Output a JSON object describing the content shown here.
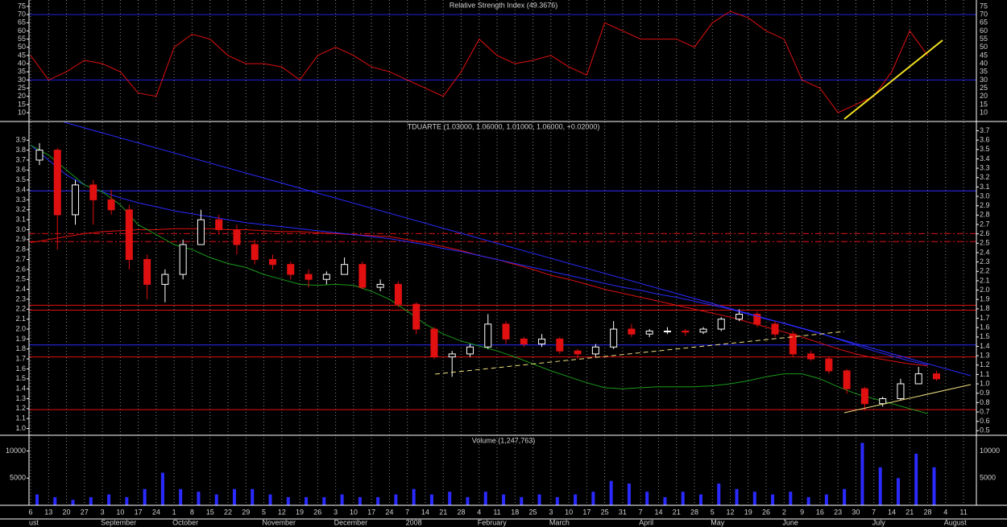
{
  "x_axis": {
    "months": [
      {
        "name": "ust",
        "days": [
          "6",
          "13",
          "20",
          "27"
        ]
      },
      {
        "name": "September",
        "days": [
          "3",
          "10",
          "17",
          "24"
        ]
      },
      {
        "name": "October",
        "days": [
          "1",
          "8",
          "15",
          "22",
          "29"
        ]
      },
      {
        "name": "November",
        "days": [
          "5",
          "12",
          "19",
          "26"
        ]
      },
      {
        "name": "December",
        "days": [
          "3",
          "10",
          "17",
          "24"
        ]
      },
      {
        "name": "2008",
        "days": [
          "7",
          "14",
          "21",
          "28"
        ]
      },
      {
        "name": "February",
        "days": [
          "4",
          "11",
          "18",
          "25"
        ]
      },
      {
        "name": "March",
        "days": [
          "3",
          "10",
          "17",
          "25",
          "31"
        ]
      },
      {
        "name": "April",
        "days": [
          "7",
          "14",
          "21",
          "28"
        ]
      },
      {
        "name": "May",
        "days": [
          "5",
          "12",
          "19",
          "26"
        ]
      },
      {
        "name": "June",
        "days": [
          "2",
          "9",
          "16",
          "23",
          "30"
        ]
      },
      {
        "name": "July",
        "days": [
          "7",
          "14",
          "21",
          "28"
        ]
      },
      {
        "name": "August",
        "days": [
          "4",
          "11"
        ]
      }
    ]
  },
  "chart_data": [
    {
      "type": "line",
      "title": "Relative Strength Index (49.3676)",
      "color": "#e01010",
      "values": [
        45,
        30,
        35,
        42,
        40,
        35,
        22,
        20,
        50,
        58,
        55,
        45,
        40,
        40,
        38,
        30,
        45,
        50,
        45,
        38,
        35,
        30,
        25,
        20,
        35,
        55,
        45,
        40,
        42,
        45,
        38,
        33,
        65,
        60,
        55,
        55,
        55,
        50,
        65,
        72,
        68,
        60,
        55,
        30,
        25,
        10,
        15,
        20,
        35,
        60,
        45,
        null,
        null
      ],
      "ylim": [
        5.1,
        78.9
      ],
      "yticks": [
        10,
        15,
        20,
        25,
        30,
        35,
        40,
        45,
        50,
        55,
        60,
        65,
        70,
        75
      ],
      "levels": [
        {
          "value": 70,
          "color": "#2020e0"
        },
        {
          "value": 30,
          "color": "#2020e0"
        }
      ]
    },
    {
      "type": "candlestick",
      "title": "TDUARTE (1.03000, 1.06000, 1.01000, 1.06000, +0.02000)",
      "up_color": "#ffffff",
      "down_color": "#e01010",
      "open": [
        3.7,
        3.8,
        3.15,
        3.45,
        3.3,
        3.2,
        2.7,
        2.45,
        2.55,
        2.85,
        3.1,
        3.0,
        2.85,
        2.7,
        2.65,
        2.55,
        2.5,
        2.55,
        2.65,
        2.42,
        2.45,
        2.25,
        2.0,
        1.72,
        1.75,
        1.82,
        2.05,
        1.9,
        1.85,
        1.9,
        1.78,
        1.75,
        1.82,
        2.0,
        1.95,
        1.98,
        1.98,
        1.97,
        2.0,
        2.1,
        2.15,
        2.05,
        1.95,
        1.75,
        1.7,
        1.58,
        1.4,
        1.25,
        1.3,
        1.45,
        1.55,
        null,
        null
      ],
      "high": [
        3.87,
        3.82,
        3.5,
        3.5,
        3.4,
        3.25,
        2.75,
        2.6,
        2.9,
        3.2,
        3.15,
        3.05,
        2.9,
        2.75,
        2.68,
        2.6,
        2.58,
        2.72,
        2.68,
        2.5,
        2.48,
        2.27,
        2.02,
        1.78,
        1.85,
        2.15,
        2.08,
        1.92,
        1.95,
        1.92,
        1.8,
        1.85,
        2.08,
        2.05,
        2.0,
        2.02,
        2.0,
        2.02,
        2.12,
        2.2,
        2.18,
        2.08,
        1.98,
        1.78,
        1.72,
        1.6,
        1.42,
        1.32,
        1.5,
        1.62,
        1.58,
        null,
        null
      ],
      "low": [
        3.65,
        2.8,
        3.05,
        3.05,
        3.15,
        2.6,
        2.3,
        2.27,
        2.5,
        2.85,
        2.95,
        2.75,
        2.65,
        2.6,
        2.5,
        2.42,
        2.45,
        2.55,
        2.4,
        2.38,
        2.22,
        1.95,
        1.7,
        1.52,
        1.72,
        1.8,
        1.85,
        1.82,
        1.82,
        1.75,
        1.7,
        1.72,
        1.8,
        1.92,
        1.92,
        1.95,
        1.93,
        1.95,
        1.98,
        2.08,
        2.02,
        1.92,
        1.72,
        1.68,
        1.55,
        1.35,
        1.18,
        1.22,
        1.28,
        1.45,
        1.48,
        null,
        null
      ],
      "close": [
        3.8,
        3.15,
        3.45,
        3.3,
        3.2,
        2.7,
        2.45,
        2.55,
        2.85,
        3.1,
        3.0,
        2.85,
        2.7,
        2.65,
        2.55,
        2.5,
        2.55,
        2.65,
        2.42,
        2.45,
        2.25,
        2.0,
        1.72,
        1.75,
        1.82,
        2.05,
        1.9,
        1.85,
        1.9,
        1.78,
        1.75,
        1.82,
        2.0,
        1.95,
        1.98,
        1.98,
        1.97,
        2.0,
        2.1,
        2.15,
        2.05,
        1.95,
        1.75,
        1.7,
        1.58,
        1.4,
        1.25,
        1.3,
        1.45,
        1.55,
        1.5,
        null,
        null
      ],
      "series": [
        {
          "color": "#e01010",
          "values": [
            2.87,
            2.9,
            2.93,
            2.96,
            2.98,
            2.99,
            3.0,
            3.0,
            3.01,
            3.01,
            3.01,
            3.0,
            3.0,
            2.99,
            2.98,
            2.98,
            2.97,
            2.96,
            2.95,
            2.94,
            2.93,
            2.9,
            2.87,
            2.83,
            2.79,
            2.74,
            2.7,
            2.65,
            2.6,
            2.54,
            2.5,
            2.45,
            2.4,
            2.36,
            2.32,
            2.28,
            2.24,
            2.2,
            2.16,
            2.12,
            2.07,
            2.02,
            1.97,
            1.92,
            1.86,
            1.8,
            1.75,
            1.71,
            1.68,
            1.65,
            1.63,
            null,
            null
          ]
        },
        {
          "color": "#2a2aff",
          "values": [
            3.85,
            3.7,
            3.55,
            3.45,
            3.38,
            3.32,
            3.27,
            3.23,
            3.19,
            3.16,
            3.13,
            3.1,
            3.07,
            3.05,
            3.03,
            3.01,
            2.99,
            2.97,
            2.95,
            2.93,
            2.91,
            2.88,
            2.85,
            2.81,
            2.78,
            2.74,
            2.7,
            2.66,
            2.62,
            2.58,
            2.54,
            2.5,
            2.46,
            2.42,
            2.39,
            2.35,
            2.32,
            2.28,
            2.24,
            2.2,
            2.15,
            2.1,
            2.06,
            2.01,
            1.96,
            1.9,
            1.84,
            1.78,
            1.73,
            1.68,
            1.64,
            null,
            null
          ]
        },
        {
          "color": "#1a9a1a",
          "values": [
            3.85,
            3.75,
            3.6,
            3.45,
            3.38,
            3.25,
            3.05,
            2.95,
            2.85,
            2.8,
            2.72,
            2.66,
            2.62,
            2.55,
            2.5,
            2.45,
            2.44,
            2.45,
            2.44,
            2.38,
            2.3,
            2.18,
            2.05,
            1.95,
            1.88,
            1.83,
            1.78,
            1.72,
            1.65,
            1.58,
            1.52,
            1.46,
            1.41,
            1.4,
            1.41,
            1.42,
            1.42,
            1.42,
            1.43,
            1.45,
            1.48,
            1.52,
            1.55,
            1.55,
            1.5,
            1.42,
            1.35,
            1.3,
            1.25,
            1.2,
            1.15,
            null,
            null
          ]
        }
      ],
      "ylim": [
        0.94,
        4.08
      ],
      "yticks": [
        {
          "value": 1,
          "label": "1.0"
        },
        1.1,
        1.2,
        1.3,
        1.4,
        1.5,
        1.6,
        1.7,
        1.8,
        1.9,
        {
          "value": 2,
          "label": "2.0"
        },
        2.1,
        2.2,
        2.3,
        2.4,
        2.5,
        2.6,
        2.7,
        2.8,
        2.9,
        {
          "value": 3,
          "label": "3.0"
        },
        3.1,
        3.2,
        3.3,
        3.4,
        3.5,
        3.6,
        3.7,
        3.8,
        3.9
      ],
      "y2lim": [
        0.46,
        3.79
      ],
      "y2ticks": [
        0.5,
        0.6,
        0.7,
        0.8,
        0.9,
        {
          "value": 1,
          "label": "1.0"
        },
        1.1,
        1.2,
        1.3,
        1.4,
        1.5,
        1.6,
        1.7,
        1.8,
        1.9,
        {
          "value": 2,
          "label": "2.0"
        },
        2.1,
        2.2,
        2.3,
        2.4,
        2.5,
        2.6,
        2.7,
        2.8,
        2.9,
        {
          "value": 3,
          "label": "3.0"
        },
        3.1,
        3.2,
        3.3,
        3.4,
        3.5,
        3.6,
        3.7
      ],
      "levels": [
        {
          "value": 3.39,
          "color": "#2a2aff"
        },
        {
          "value": 2.96,
          "color": "#e01010",
          "dashed": true
        },
        {
          "value": 2.88,
          "color": "#e01010",
          "dashed": true
        },
        {
          "value": 2.24,
          "color": "#e01010"
        },
        {
          "value": 2.19,
          "color": "#e01010"
        },
        {
          "value": 1.84,
          "color": "#2a2aff"
        },
        {
          "value": 1.72,
          "color": "#e01010"
        },
        {
          "value": 1.19,
          "color": "#e01010"
        }
      ]
    },
    {
      "type": "bar",
      "title": "Volume (1,247,763)",
      "color": "#2a2aff",
      "values": [
        2000,
        1500,
        1000,
        1500,
        2000,
        1500,
        3000,
        6000,
        3000,
        2500,
        2000,
        3000,
        3000,
        2000,
        1500,
        1500,
        1500,
        2000,
        1500,
        1500,
        2000,
        3000,
        2000,
        2500,
        1500,
        2500,
        2000,
        1500,
        2000,
        1500,
        2000,
        2500,
        4500,
        4000,
        2500,
        1500,
        2500,
        2000,
        4000,
        3000,
        2500,
        2000,
        2500,
        1500,
        2000,
        3000,
        11500,
        7000,
        5000,
        9500,
        7000,
        null,
        null
      ],
      "ylim": [
        0,
        12750
      ],
      "yticks": [
        5000,
        10000
      ]
    }
  ]
}
